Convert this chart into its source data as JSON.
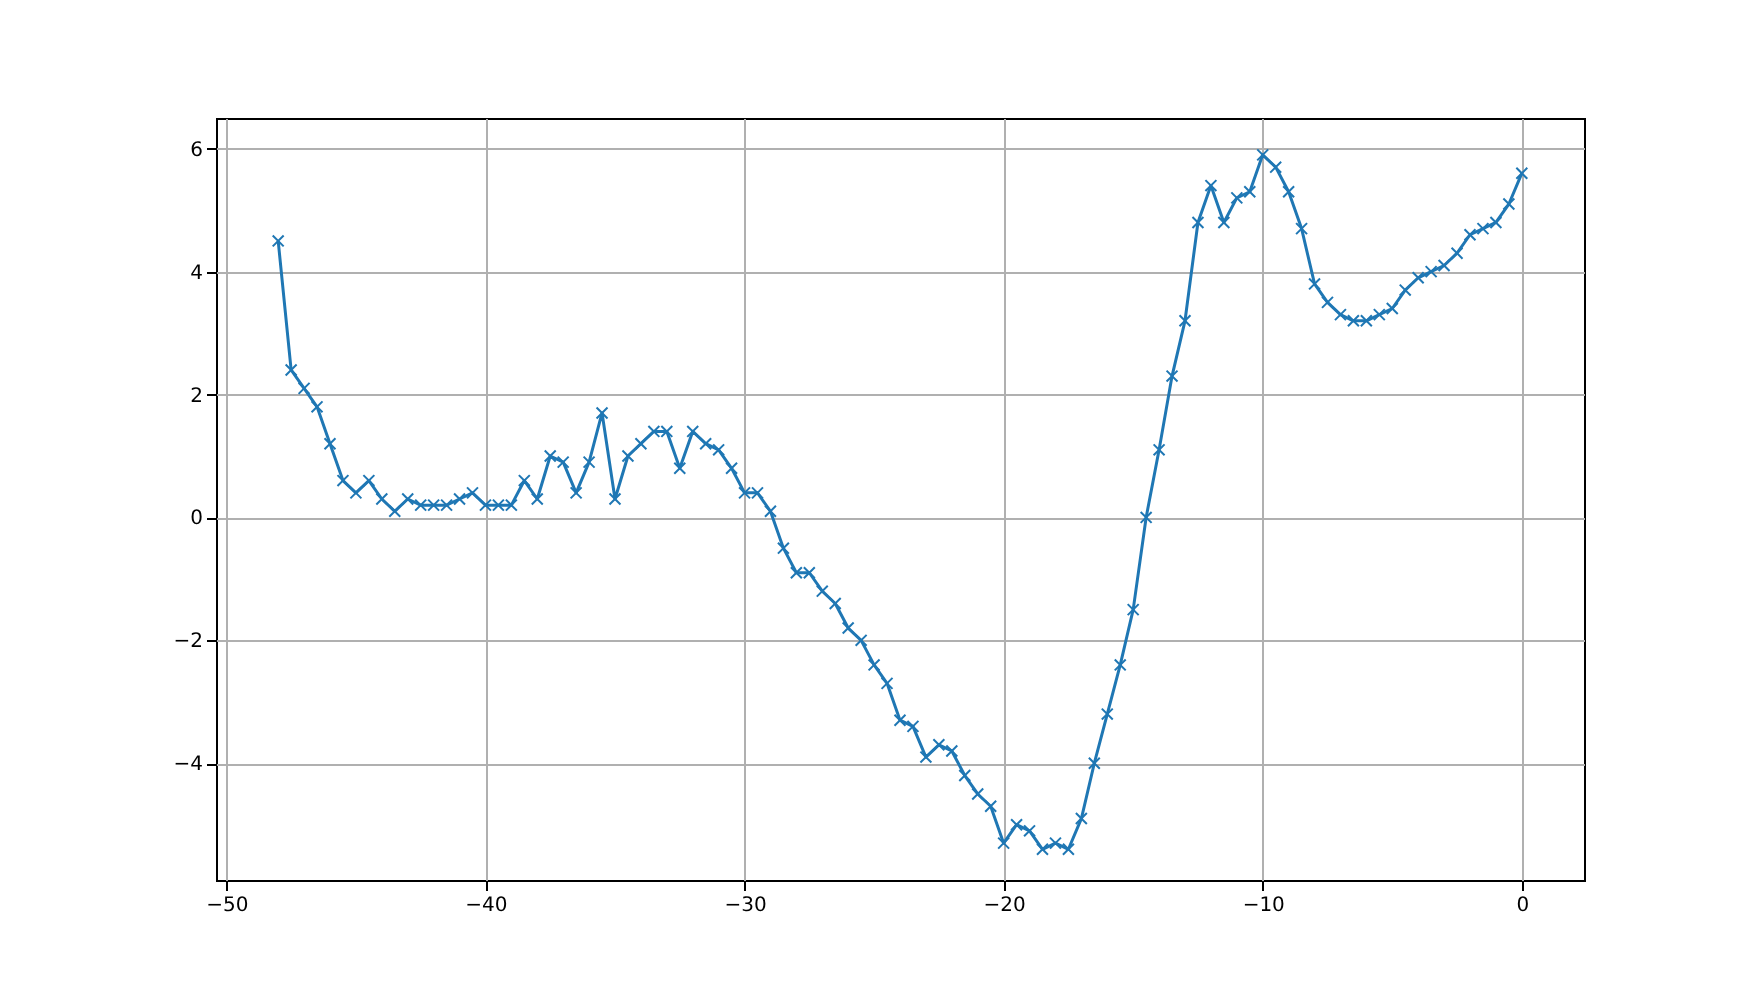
{
  "chart_data": {
    "type": "line",
    "x": [
      -48,
      -47.5,
      -47,
      -46.5,
      -46,
      -45.5,
      -45,
      -44.5,
      -44,
      -43.5,
      -43,
      -42.5,
      -42,
      -41.5,
      -41,
      -40.5,
      -40,
      -39.5,
      -39,
      -38.5,
      -38,
      -37.5,
      -37,
      -36.5,
      -36,
      -35.5,
      -35,
      -34.5,
      -34,
      -33.5,
      -33,
      -32.5,
      -32,
      -31.5,
      -31,
      -30.5,
      -30,
      -29.5,
      -29,
      -28.5,
      -28,
      -27.5,
      -27,
      -26.5,
      -26,
      -25.5,
      -25,
      -24.5,
      -24,
      -23.5,
      -23,
      -22.5,
      -22,
      -21.5,
      -21,
      -20.5,
      -20,
      -19.5,
      -19,
      -18.5,
      -18,
      -17.5,
      -17,
      -16.5,
      -16,
      -15.5,
      -15,
      -14.5,
      -14,
      -13.5,
      -13,
      -12.5,
      -12,
      -11.5,
      -11,
      -10.5,
      -10,
      -9.5,
      -9,
      -8.5,
      -8,
      -7.5,
      -7,
      -6.5,
      -6,
      -5.5,
      -5,
      -4.5,
      -4,
      -3.5,
      -3,
      -2.5,
      -2,
      -1.5,
      -1,
      -0.5,
      0
    ],
    "series": [
      {
        "color": "#1f77b4",
        "values": [
          4.5,
          2.4,
          2.1,
          1.8,
          1.2,
          0.6,
          0.4,
          0.6,
          0.3,
          0.1,
          0.3,
          0.2,
          0.2,
          0.2,
          0.3,
          0.4,
          0.2,
          0.2,
          0.2,
          0.6,
          0.3,
          1.0,
          0.9,
          0.4,
          0.9,
          1.7,
          0.3,
          1.0,
          1.2,
          1.4,
          1.4,
          0.8,
          1.4,
          1.2,
          1.1,
          0.8,
          0.4,
          0.4,
          0.1,
          -0.5,
          -0.9,
          -0.9,
          -1.2,
          -1.4,
          -1.8,
          -2.0,
          -2.4,
          -2.7,
          -3.3,
          -3.4,
          -3.9,
          -3.7,
          -3.8,
          -4.2,
          -4.5,
          -4.7,
          -5.3,
          -5.0,
          -5.1,
          -5.4,
          -5.3,
          -5.4,
          -4.9,
          -4.0,
          -3.2,
          -2.4,
          -1.5,
          0.0,
          1.1,
          2.3,
          3.2,
          4.8,
          5.4,
          4.8,
          5.2,
          5.3,
          5.9,
          5.7,
          5.3,
          4.7,
          3.8,
          3.5,
          3.3,
          3.2,
          3.2,
          3.3,
          3.4,
          3.7,
          3.9,
          4.0,
          4.1,
          4.3,
          4.6,
          4.7,
          4.8,
          5.1,
          5.6
        ]
      }
    ],
    "xlim": [
      -50.4,
      2.4
    ],
    "ylim": [
      -5.9,
      6.5
    ],
    "xticks": [
      -50,
      -40,
      -30,
      -20,
      -10,
      0
    ],
    "yticks": [
      -4,
      -2,
      0,
      2,
      4,
      6
    ],
    "grid": true,
    "marker": "cross",
    "line_style": "solid"
  }
}
